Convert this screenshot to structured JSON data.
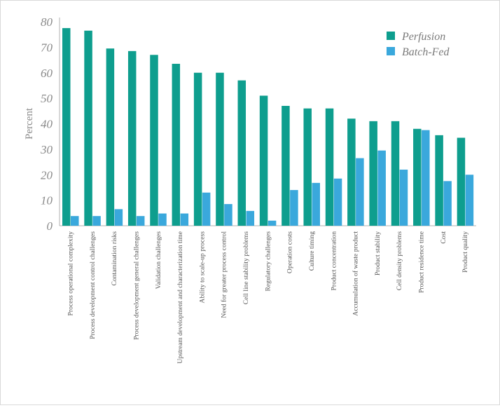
{
  "chart_data": {
    "type": "bar",
    "title": "",
    "xlabel": "",
    "ylabel": "Percent",
    "ylim": [
      0,
      80
    ],
    "yticks": [
      0,
      10,
      20,
      30,
      40,
      50,
      60,
      70,
      80
    ],
    "legend_position": "top-right",
    "grid": false,
    "categories": [
      "Process operational complexity",
      "Process development control challenges",
      "Contamination risks",
      "Process development general challenges",
      "Validation challenges",
      "Upstream development and characterization time",
      "Ability to scale-up process",
      "Need for greater process control",
      "Cell line stability problems",
      "Regulatory challenges",
      "Operation costs",
      "Culture timing",
      "Product concentration",
      "Accumulation of waste product",
      "Product stability",
      "Cell density problems",
      "Product residence time",
      "Cost",
      "Product quality"
    ],
    "series": [
      {
        "name": "Perfusion",
        "color": "#0e9e8e",
        "values": [
          77.5,
          76.5,
          69.5,
          68.5,
          67,
          63.5,
          60,
          60,
          57,
          51,
          47,
          46,
          46,
          42,
          41,
          41,
          38,
          35.5,
          34.5
        ]
      },
      {
        "name": "Batch-Fed",
        "color": "#3aa8dc",
        "values": [
          3.8,
          3.8,
          6.5,
          3.8,
          4.8,
          4.8,
          13,
          8.5,
          5.8,
          2,
          14,
          16.8,
          18.5,
          26.5,
          29.5,
          22,
          37.5,
          17.5,
          20
        ]
      }
    ]
  }
}
